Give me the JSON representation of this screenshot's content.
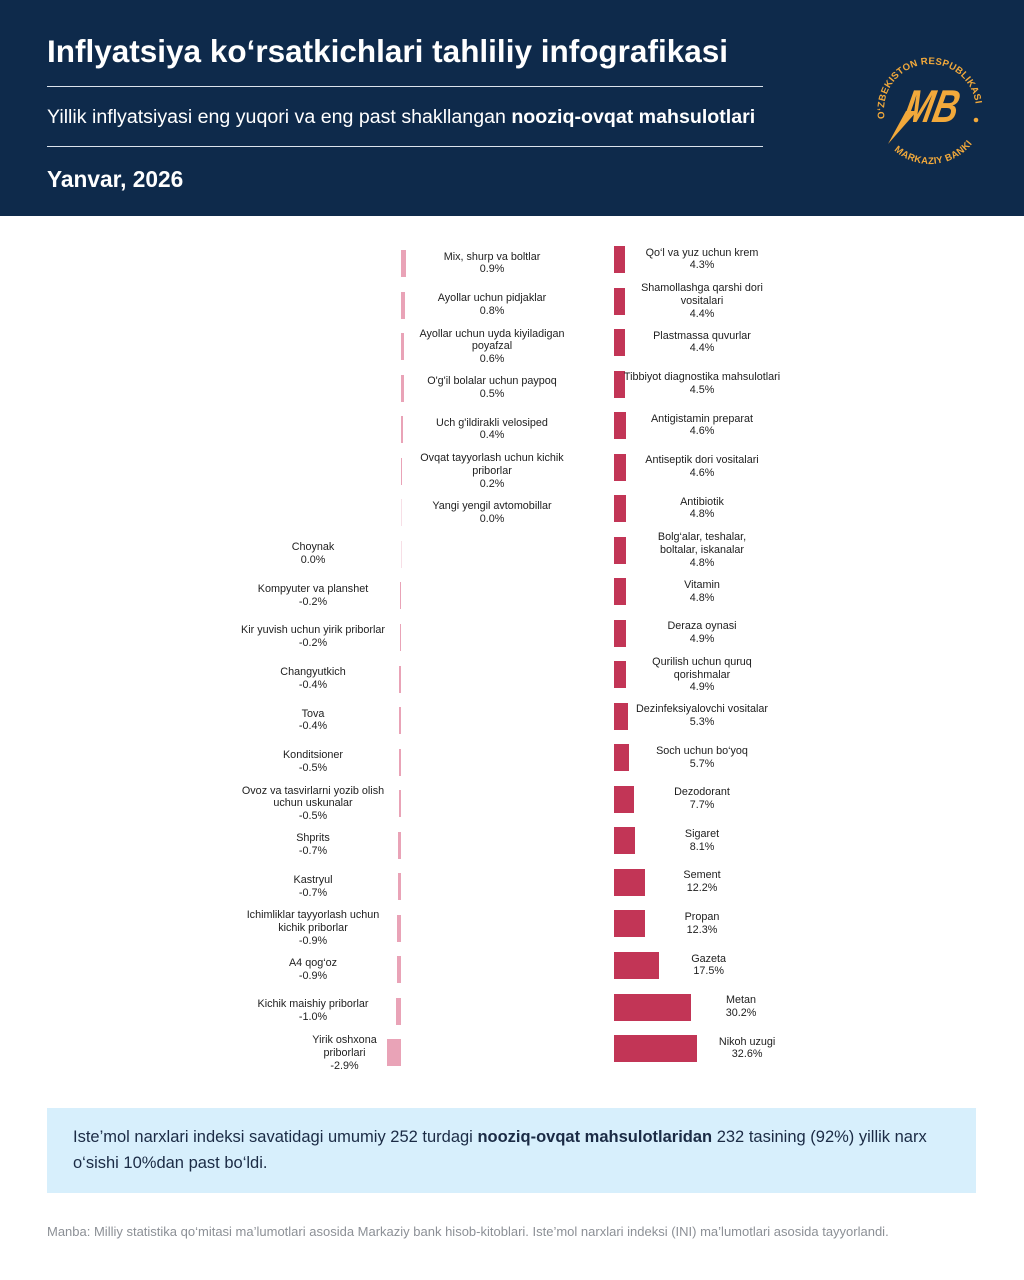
{
  "header": {
    "title": "Inflyatsiya ko‘rsatkichlari tahliliy infografikasi",
    "subtitle_regular": "Yillik inflyatsiyasi eng yuqori va eng past shakllangan ",
    "subtitle_bold": "nooziq-ovqat mahsulotlari",
    "date": "Yanvar, 2026"
  },
  "logo": {
    "top_text": "O‘ZBEKISTON RESPUBLIKASI",
    "bottom_text": "MARKAZIY BANKI",
    "monogram": "MB"
  },
  "colors": {
    "header_bg": "#0e2a4b",
    "logo": "#f2a93b",
    "low_bar": "#e9a3b7",
    "high_bar": "#c23556",
    "info_bg": "#d7effc"
  },
  "chart_data": [
    {
      "type": "bar",
      "orientation": "horizontal",
      "title": "",
      "xlabel": "",
      "ylabel": "",
      "unit": "%",
      "categories": [
        "Mix, shurp va boltlar",
        "Ayollar uchun pidjaklar",
        "Ayollar uchun uyda kiyiladigan\npoyafzal",
        "O'g'il bolalar uchun paypoq",
        "Uch g'ildirakli velosiped",
        "Ovqat tayyorlash uchun kichik\npriborlar",
        "Yangi yengil avtomobillar",
        "Choynak",
        "Kompyuter va planshet",
        "Kir yuvish uchun yirik priborlar",
        "Changyutkich",
        "Tova",
        "Konditsioner",
        "Ovoz va tasvirlarni yozib olish\nuchun uskunalar",
        "Shprits",
        "Kastryul",
        "Ichimliklar tayyorlash uchun\nkichik priborlar",
        "A4 qog‘oz",
        "Kichik maishiy priborlar",
        "Yirik oshxona\npriborlari"
      ],
      "values": [
        0.9,
        0.8,
        0.6,
        0.5,
        0.4,
        0.2,
        0.0,
        0.0,
        -0.2,
        -0.2,
        -0.4,
        -0.4,
        -0.5,
        -0.5,
        -0.7,
        -0.7,
        -0.9,
        -0.9,
        -1.0,
        -2.9
      ]
    },
    {
      "type": "bar",
      "orientation": "horizontal",
      "title": "",
      "xlabel": "",
      "ylabel": "",
      "unit": "%",
      "categories": [
        "Qo‘l va yuz uchun krem",
        "Shamollashga qarshi dori\nvositalari",
        "Plastmassa quvurlar",
        "Tibbiyot diagnostika mahsulotlari",
        "Antigistamin preparat",
        "Antiseptik dori vositalari",
        "Antibiotik",
        "Bolg‘alar, teshalar,\nboltalar, iskanalar",
        "Vitamin",
        "Deraza oynasi",
        "Qurilish uchun quruq\nqorishmalar",
        "Dezinfeksiyalovchi vositalar",
        "Soch uchun bo‘yoq",
        "Dezodorant",
        "Sigaret",
        "Sement",
        "Propan",
        "Gazeta",
        "Metan",
        "Nikoh uzugi"
      ],
      "values": [
        4.3,
        4.4,
        4.4,
        4.5,
        4.6,
        4.6,
        4.8,
        4.8,
        4.8,
        4.9,
        4.9,
        5.3,
        5.7,
        7.7,
        8.1,
        12.2,
        12.3,
        17.5,
        30.2,
        32.6
      ]
    }
  ],
  "info": {
    "text_before": "Iste’mol narxlari indeksi savatidagi umumiy 252 turdagi ",
    "text_bold": "nooziq-ovqat mahsulotlaridan",
    "text_after": " 232 tasining (92%) yillik narx o‘sishi 10%dan past bo‘ldi."
  },
  "source": "Manba: Milliy statistika qo‘mitasi ma’lumotlari asosida Markaziy bank hisob-kitoblari. Iste’mol narxlari indeksi (INI) ma’lumotlari asosida tayyorlandi."
}
